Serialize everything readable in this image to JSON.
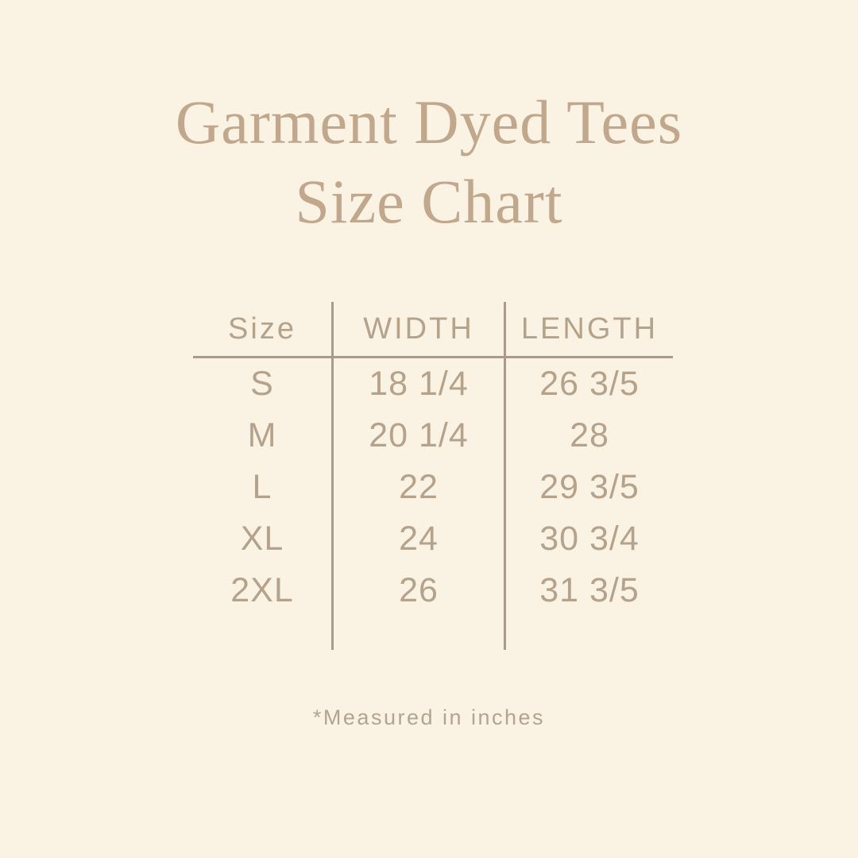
{
  "colors": {
    "background": "#faf3e3",
    "title_text": "#c1a88d",
    "table_text": "#b5a28b",
    "line": "#a89b8d",
    "footnote_text": "#b2a392"
  },
  "title": {
    "line1": "Garment Dyed Tees",
    "line2": "Size Chart"
  },
  "table": {
    "headers": {
      "size": "Size",
      "width": "WIDTH",
      "length": "LENGTH"
    },
    "rows": [
      {
        "size": "S",
        "width": "18 1/4",
        "length": "26 3/5"
      },
      {
        "size": "M",
        "width": "20 1/4",
        "length": "28"
      },
      {
        "size": "L",
        "width": "22",
        "length": "29 3/5"
      },
      {
        "size": "XL",
        "width": "24",
        "length": "30 3/4"
      },
      {
        "size": "2XL",
        "width": "26",
        "length": "31 3/5"
      }
    ]
  },
  "footnote": "*Measured in inches",
  "chart_data": {
    "type": "table",
    "title": "Garment Dyed Tees Size Chart",
    "columns": [
      "Size",
      "WIDTH",
      "LENGTH"
    ],
    "rows": [
      [
        "S",
        "18 1/4",
        "26 3/5"
      ],
      [
        "M",
        "20 1/4",
        "28"
      ],
      [
        "L",
        "22",
        "29 3/5"
      ],
      [
        "XL",
        "24",
        "30 3/4"
      ],
      [
        "2XL",
        "26",
        "31 3/5"
      ]
    ],
    "units": "inches",
    "note": "*Measured in inches",
    "layout": "3-column table, vertical rules flanking WIDTH column, horizontal rule under header row"
  }
}
